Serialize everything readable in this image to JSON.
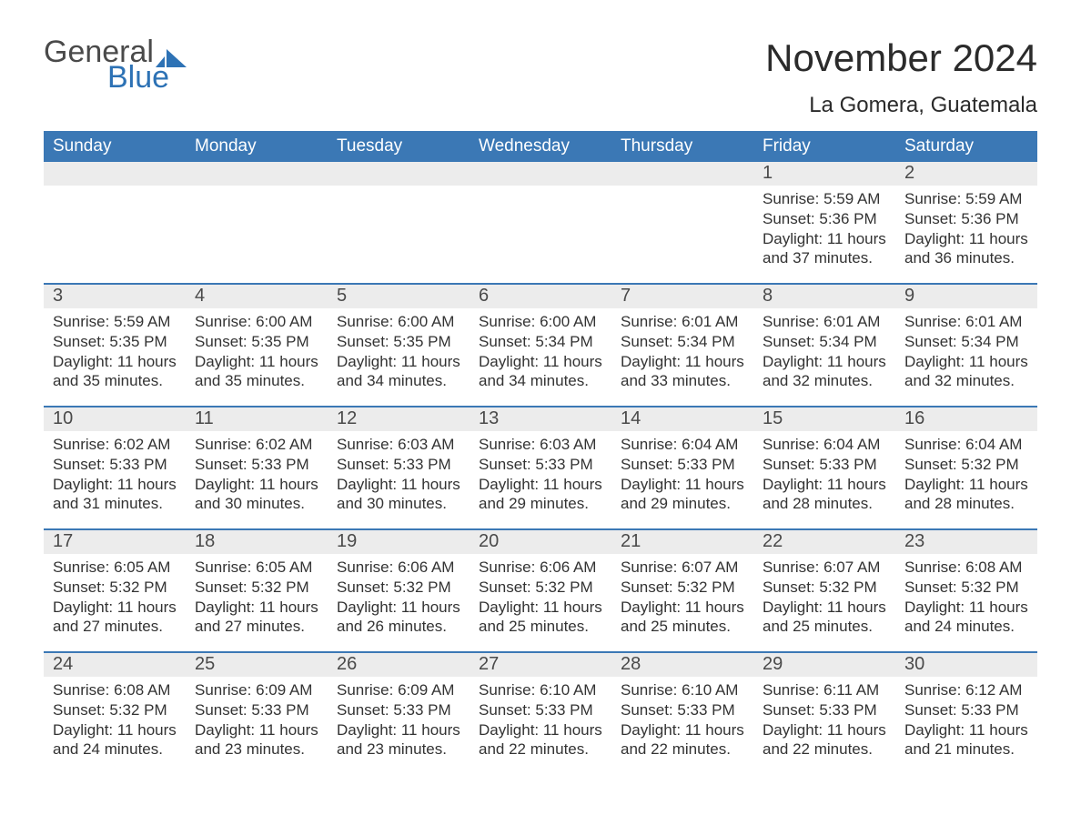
{
  "colors": {
    "header_bg": "#3b78b5",
    "header_text": "#ffffff",
    "daynum_bg": "#ececec",
    "daynum_text": "#4a4a4a",
    "body_text": "#333333",
    "rule": "#3b78b5",
    "logo_blue": "#2d72b5",
    "logo_text": "#4a4a4a",
    "page_bg": "#ffffff"
  },
  "typography": {
    "month_title_pt": 42,
    "location_pt": 24,
    "dow_pt": 19,
    "daynum_pt": 20,
    "body_pt": 17,
    "logo_pt": 34,
    "family": "Arial"
  },
  "logo": {
    "line1": "General",
    "line2": "Blue"
  },
  "title": "November 2024",
  "location": "La Gomera, Guatemala",
  "days_of_week": [
    "Sunday",
    "Monday",
    "Tuesday",
    "Wednesday",
    "Thursday",
    "Friday",
    "Saturday"
  ],
  "weeks": [
    [
      {
        "empty": true
      },
      {
        "empty": true
      },
      {
        "empty": true
      },
      {
        "empty": true
      },
      {
        "empty": true
      },
      {
        "n": "1",
        "sunrise": "Sunrise: 5:59 AM",
        "sunset": "Sunset: 5:36 PM",
        "day1": "Daylight: 11 hours",
        "day2": "and 37 minutes."
      },
      {
        "n": "2",
        "sunrise": "Sunrise: 5:59 AM",
        "sunset": "Sunset: 5:36 PM",
        "day1": "Daylight: 11 hours",
        "day2": "and 36 minutes."
      }
    ],
    [
      {
        "n": "3",
        "sunrise": "Sunrise: 5:59 AM",
        "sunset": "Sunset: 5:35 PM",
        "day1": "Daylight: 11 hours",
        "day2": "and 35 minutes."
      },
      {
        "n": "4",
        "sunrise": "Sunrise: 6:00 AM",
        "sunset": "Sunset: 5:35 PM",
        "day1": "Daylight: 11 hours",
        "day2": "and 35 minutes."
      },
      {
        "n": "5",
        "sunrise": "Sunrise: 6:00 AM",
        "sunset": "Sunset: 5:35 PM",
        "day1": "Daylight: 11 hours",
        "day2": "and 34 minutes."
      },
      {
        "n": "6",
        "sunrise": "Sunrise: 6:00 AM",
        "sunset": "Sunset: 5:34 PM",
        "day1": "Daylight: 11 hours",
        "day2": "and 34 minutes."
      },
      {
        "n": "7",
        "sunrise": "Sunrise: 6:01 AM",
        "sunset": "Sunset: 5:34 PM",
        "day1": "Daylight: 11 hours",
        "day2": "and 33 minutes."
      },
      {
        "n": "8",
        "sunrise": "Sunrise: 6:01 AM",
        "sunset": "Sunset: 5:34 PM",
        "day1": "Daylight: 11 hours",
        "day2": "and 32 minutes."
      },
      {
        "n": "9",
        "sunrise": "Sunrise: 6:01 AM",
        "sunset": "Sunset: 5:34 PM",
        "day1": "Daylight: 11 hours",
        "day2": "and 32 minutes."
      }
    ],
    [
      {
        "n": "10",
        "sunrise": "Sunrise: 6:02 AM",
        "sunset": "Sunset: 5:33 PM",
        "day1": "Daylight: 11 hours",
        "day2": "and 31 minutes."
      },
      {
        "n": "11",
        "sunrise": "Sunrise: 6:02 AM",
        "sunset": "Sunset: 5:33 PM",
        "day1": "Daylight: 11 hours",
        "day2": "and 30 minutes."
      },
      {
        "n": "12",
        "sunrise": "Sunrise: 6:03 AM",
        "sunset": "Sunset: 5:33 PM",
        "day1": "Daylight: 11 hours",
        "day2": "and 30 minutes."
      },
      {
        "n": "13",
        "sunrise": "Sunrise: 6:03 AM",
        "sunset": "Sunset: 5:33 PM",
        "day1": "Daylight: 11 hours",
        "day2": "and 29 minutes."
      },
      {
        "n": "14",
        "sunrise": "Sunrise: 6:04 AM",
        "sunset": "Sunset: 5:33 PM",
        "day1": "Daylight: 11 hours",
        "day2": "and 29 minutes."
      },
      {
        "n": "15",
        "sunrise": "Sunrise: 6:04 AM",
        "sunset": "Sunset: 5:33 PM",
        "day1": "Daylight: 11 hours",
        "day2": "and 28 minutes."
      },
      {
        "n": "16",
        "sunrise": "Sunrise: 6:04 AM",
        "sunset": "Sunset: 5:32 PM",
        "day1": "Daylight: 11 hours",
        "day2": "and 28 minutes."
      }
    ],
    [
      {
        "n": "17",
        "sunrise": "Sunrise: 6:05 AM",
        "sunset": "Sunset: 5:32 PM",
        "day1": "Daylight: 11 hours",
        "day2": "and 27 minutes."
      },
      {
        "n": "18",
        "sunrise": "Sunrise: 6:05 AM",
        "sunset": "Sunset: 5:32 PM",
        "day1": "Daylight: 11 hours",
        "day2": "and 27 minutes."
      },
      {
        "n": "19",
        "sunrise": "Sunrise: 6:06 AM",
        "sunset": "Sunset: 5:32 PM",
        "day1": "Daylight: 11 hours",
        "day2": "and 26 minutes."
      },
      {
        "n": "20",
        "sunrise": "Sunrise: 6:06 AM",
        "sunset": "Sunset: 5:32 PM",
        "day1": "Daylight: 11 hours",
        "day2": "and 25 minutes."
      },
      {
        "n": "21",
        "sunrise": "Sunrise: 6:07 AM",
        "sunset": "Sunset: 5:32 PM",
        "day1": "Daylight: 11 hours",
        "day2": "and 25 minutes."
      },
      {
        "n": "22",
        "sunrise": "Sunrise: 6:07 AM",
        "sunset": "Sunset: 5:32 PM",
        "day1": "Daylight: 11 hours",
        "day2": "and 25 minutes."
      },
      {
        "n": "23",
        "sunrise": "Sunrise: 6:08 AM",
        "sunset": "Sunset: 5:32 PM",
        "day1": "Daylight: 11 hours",
        "day2": "and 24 minutes."
      }
    ],
    [
      {
        "n": "24",
        "sunrise": "Sunrise: 6:08 AM",
        "sunset": "Sunset: 5:32 PM",
        "day1": "Daylight: 11 hours",
        "day2": "and 24 minutes."
      },
      {
        "n": "25",
        "sunrise": "Sunrise: 6:09 AM",
        "sunset": "Sunset: 5:33 PM",
        "day1": "Daylight: 11 hours",
        "day2": "and 23 minutes."
      },
      {
        "n": "26",
        "sunrise": "Sunrise: 6:09 AM",
        "sunset": "Sunset: 5:33 PM",
        "day1": "Daylight: 11 hours",
        "day2": "and 23 minutes."
      },
      {
        "n": "27",
        "sunrise": "Sunrise: 6:10 AM",
        "sunset": "Sunset: 5:33 PM",
        "day1": "Daylight: 11 hours",
        "day2": "and 22 minutes."
      },
      {
        "n": "28",
        "sunrise": "Sunrise: 6:10 AM",
        "sunset": "Sunset: 5:33 PM",
        "day1": "Daylight: 11 hours",
        "day2": "and 22 minutes."
      },
      {
        "n": "29",
        "sunrise": "Sunrise: 6:11 AM",
        "sunset": "Sunset: 5:33 PM",
        "day1": "Daylight: 11 hours",
        "day2": "and 22 minutes."
      },
      {
        "n": "30",
        "sunrise": "Sunrise: 6:12 AM",
        "sunset": "Sunset: 5:33 PM",
        "day1": "Daylight: 11 hours",
        "day2": "and 21 minutes."
      }
    ]
  ]
}
